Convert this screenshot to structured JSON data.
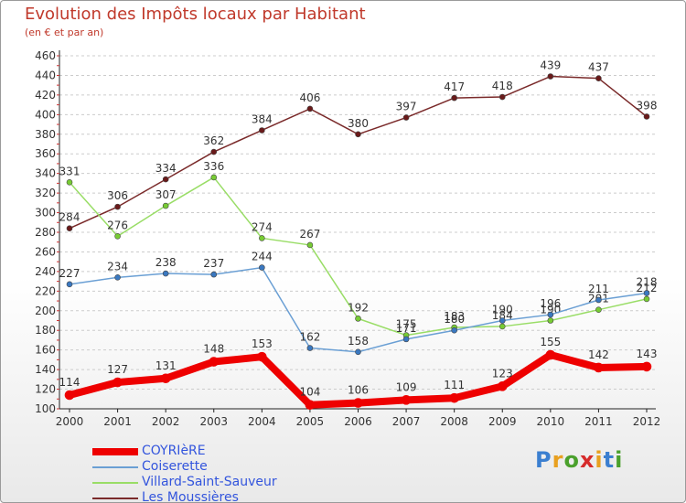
{
  "title": "Evolution des Impôts locaux par Habitant",
  "subtitle": "(en € et par an)",
  "logo": {
    "text": "Proxiti",
    "letters": [
      {
        "ch": "P",
        "color": "#3b7fd0"
      },
      {
        "ch": "r",
        "color": "#e8a020"
      },
      {
        "ch": "o",
        "color": "#4aa02c"
      },
      {
        "ch": "x",
        "color": "#d62b2b"
      },
      {
        "ch": "i",
        "color": "#e8a020"
      },
      {
        "ch": "t",
        "color": "#3b7fd0"
      },
      {
        "ch": "i",
        "color": "#4aa02c"
      }
    ]
  },
  "chart_data": {
    "type": "line",
    "title": "Evolution des Impôts locaux par Habitant",
    "subtitle": "(en € et par an)",
    "xlabel": "",
    "ylabel": "",
    "categories": [
      "2000",
      "2001",
      "2002",
      "2003",
      "2004",
      "2005",
      "2006",
      "2007",
      "2008",
      "2009",
      "2010",
      "2011",
      "2012"
    ],
    "yticks": [
      100,
      120,
      140,
      160,
      180,
      200,
      220,
      240,
      260,
      280,
      300,
      320,
      340,
      360,
      380,
      400,
      420,
      440,
      460
    ],
    "ylim": [
      100,
      460
    ],
    "grid": "horizontal dashed",
    "legend_position": "bottom-left",
    "series": [
      {
        "name": "COYRIèRE",
        "color": "#ee0000",
        "width": 8,
        "marker": "#ee0000",
        "values": [
          114,
          127,
          131,
          148,
          153,
          104,
          106,
          109,
          111,
          123,
          155,
          142,
          143
        ]
      },
      {
        "name": "Coiserette",
        "color": "#6a9fd4",
        "width": 1.5,
        "marker": "#3a78c0",
        "values": [
          227,
          234,
          238,
          237,
          244,
          162,
          158,
          171,
          180,
          190,
          196,
          211,
          218
        ]
      },
      {
        "name": "Villard-Saint-Sauveur",
        "color": "#99dd66",
        "width": 1.5,
        "marker": "#77cc33",
        "values": [
          331,
          276,
          307,
          336,
          274,
          267,
          192,
          175,
          183,
          184,
          190,
          201,
          212
        ]
      },
      {
        "name": "Les Moussières",
        "color": "#7a2a2a",
        "width": 1.5,
        "marker": "#6a1a1a",
        "values": [
          284,
          306,
          334,
          362,
          384,
          406,
          380,
          397,
          417,
          418,
          439,
          437,
          398
        ]
      }
    ]
  }
}
